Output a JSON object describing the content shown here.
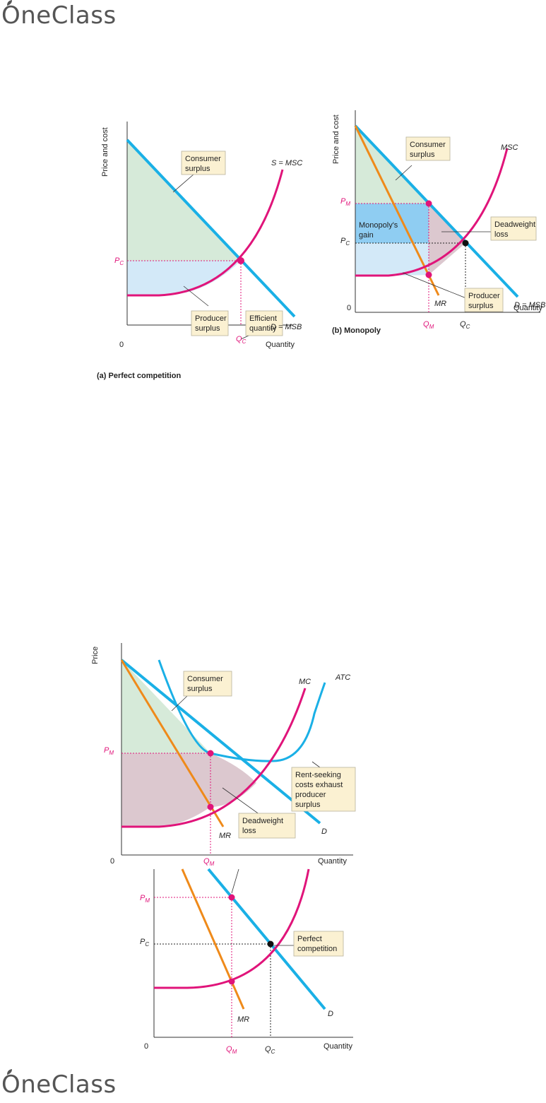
{
  "brand": {
    "logo_text": "OneClass"
  },
  "colors": {
    "demand": "#1ab0e6",
    "supply": "#e0147a",
    "mr": "#ef8a1a",
    "consumer_fill": "#d6ead9",
    "producer_fill": "#d3e9f8",
    "gain_fill": "#8fcdf2",
    "deadweight_fill": "#dcc8cf",
    "box_fill": "#fbf1d2"
  },
  "fig_a": {
    "ylabel": "Price and cost",
    "xlabel": "Quantity",
    "origin": "0",
    "pc": "P",
    "pc_sub": "C",
    "qc": "Q",
    "qc_sub": "C",
    "supply_label": "S = MSC",
    "demand_label": "D = MSB",
    "consumer_l1": "Consumer",
    "consumer_l2": "surplus",
    "producer_l1": "Producer",
    "producer_l2": "surplus",
    "efficient_l1": "Efficient",
    "efficient_l2": "quantity",
    "caption": "(a) Perfect competition"
  },
  "fig_b": {
    "ylabel": "Price and cost",
    "xlabel": "Quantity",
    "origin": "0",
    "pm": "P",
    "pm_sub": "M",
    "pc": "P",
    "pc_sub": "C",
    "qm": "Q",
    "qm_sub": "M",
    "qc": "Q",
    "qc_sub": "C",
    "msc_label": "MSC",
    "demand_label": "D = MSB",
    "mr_label": "MR",
    "consumer_l1": "Consumer",
    "consumer_l2": "surplus",
    "gain_l1": "Monopoly's",
    "gain_l2": "gain",
    "dwl_l1": "Deadweight",
    "dwl_l2": "loss",
    "producer_l1": "Producer",
    "producer_l2": "surplus",
    "caption": "(b) Monopoly"
  },
  "fig_c": {
    "ylabel": "Price",
    "xlabel": "Quantity",
    "origin": "0",
    "pm": "P",
    "pm_sub": "M",
    "qm": "Q",
    "qm_sub": "M",
    "mc_label": "MC",
    "atc_label": "ATC",
    "demand_label": "D",
    "mr_label": "MR",
    "consumer_l1": "Consumer",
    "consumer_l2": "surplus",
    "rent_l1": "Rent-seeking",
    "rent_l2": "costs exhaust",
    "rent_l3": "producer",
    "rent_l4": "surplus",
    "dwl_l1": "Deadweight",
    "dwl_l2": "loss"
  },
  "fig_d": {
    "xlabel": "Quantity",
    "origin": "0",
    "pm": "P",
    "pm_sub": "M",
    "pc": "P",
    "pc_sub": "C",
    "qm": "Q",
    "qm_sub": "M",
    "qc": "Q",
    "qc_sub": "C",
    "demand_label": "D",
    "mr_label": "MR",
    "perfect_l1": "Perfect",
    "perfect_l2": "competition"
  }
}
